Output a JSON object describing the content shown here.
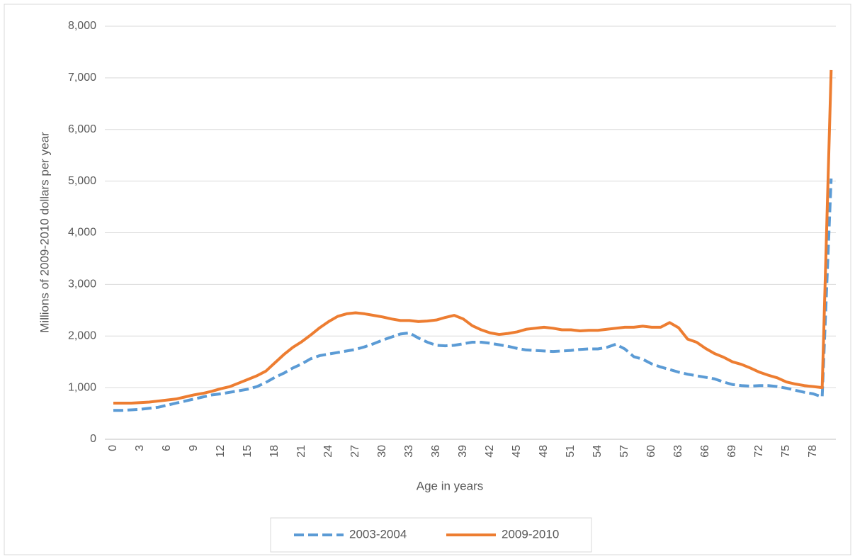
{
  "chart_data": {
    "type": "line",
    "x_label": "Age in years",
    "y_label": "Millions of 2009-2010 dollars per year",
    "categories": [
      "0",
      null,
      null,
      "3",
      null,
      null,
      "6",
      null,
      null,
      "9",
      null,
      null,
      "12",
      null,
      null,
      "15",
      null,
      null,
      "18",
      null,
      null,
      "21",
      null,
      null,
      "24",
      null,
      null,
      "27",
      null,
      null,
      "30",
      null,
      null,
      "33",
      null,
      null,
      "36",
      null,
      null,
      "39",
      null,
      null,
      "42",
      null,
      null,
      "45",
      null,
      null,
      "48",
      null,
      null,
      "51",
      null,
      null,
      "54",
      null,
      null,
      "57",
      null,
      null,
      "60",
      null,
      null,
      "63",
      null,
      null,
      "66",
      null,
      null,
      "69",
      null,
      null,
      "72",
      null,
      null,
      "75",
      null,
      null,
      "78",
      null,
      null
    ],
    "series": [
      {
        "name": "2003-2004",
        "color": "#5b9bd5",
        "dashed": true,
        "values": [
          560,
          560,
          570,
          580,
          600,
          620,
          660,
          700,
          740,
          780,
          820,
          860,
          880,
          910,
          940,
          970,
          1020,
          1100,
          1200,
          1280,
          1380,
          1460,
          1560,
          1620,
          1650,
          1680,
          1710,
          1740,
          1790,
          1850,
          1920,
          1980,
          2040,
          2060,
          1960,
          1880,
          1820,
          1810,
          1820,
          1850,
          1880,
          1880,
          1860,
          1830,
          1800,
          1760,
          1730,
          1720,
          1710,
          1700,
          1710,
          1720,
          1740,
          1750,
          1750,
          1780,
          1840,
          1750,
          1600,
          1550,
          1460,
          1400,
          1350,
          1300,
          1260,
          1230,
          1200,
          1170,
          1110,
          1060,
          1040,
          1030,
          1040,
          1040,
          1020,
          990,
          950,
          910,
          880,
          820,
          5050
        ]
      },
      {
        "name": "2009-2010",
        "color": "#ed7d31",
        "dashed": false,
        "values": [
          700,
          700,
          700,
          710,
          720,
          740,
          760,
          780,
          820,
          860,
          890,
          930,
          980,
          1020,
          1090,
          1160,
          1230,
          1320,
          1480,
          1640,
          1780,
          1890,
          2020,
          2160,
          2280,
          2380,
          2430,
          2450,
          2430,
          2400,
          2370,
          2330,
          2300,
          2300,
          2280,
          2290,
          2310,
          2360,
          2400,
          2330,
          2200,
          2120,
          2060,
          2030,
          2050,
          2080,
          2130,
          2150,
          2170,
          2150,
          2120,
          2120,
          2100,
          2110,
          2110,
          2130,
          2150,
          2170,
          2170,
          2190,
          2170,
          2170,
          2260,
          2160,
          1940,
          1880,
          1760,
          1660,
          1590,
          1500,
          1450,
          1380,
          1300,
          1240,
          1190,
          1110,
          1070,
          1040,
          1020,
          1000,
          7150
        ]
      }
    ],
    "ylim": [
      0,
      8000
    ],
    "yticks": [
      0,
      {
        "value": 1000,
        "label": "1,000"
      },
      {
        "value": 2000,
        "label": "2,000"
      },
      {
        "value": 3000,
        "label": "3,000"
      },
      {
        "value": 4000,
        "label": "4,000"
      },
      {
        "value": 5000,
        "label": "5,000"
      },
      {
        "value": 6000,
        "label": "6,000"
      },
      {
        "value": 7000,
        "label": "7,000"
      },
      {
        "value": 8000,
        "label": "8,000"
      }
    ],
    "grid": true,
    "legend": "bottom"
  }
}
